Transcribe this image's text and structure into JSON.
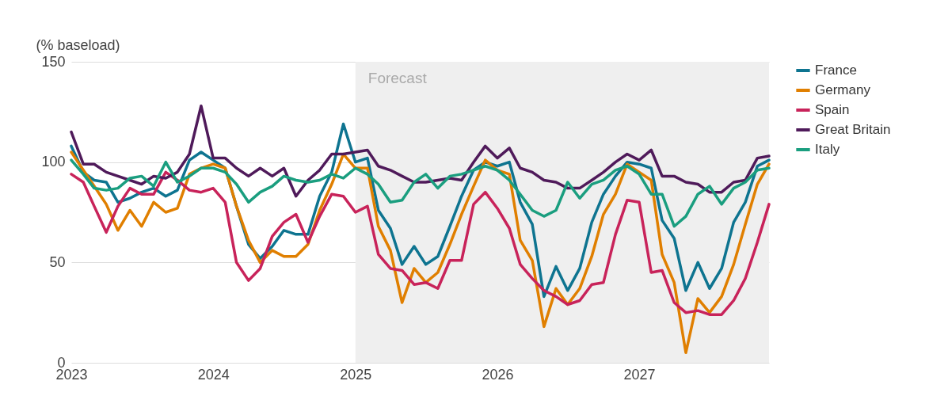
{
  "chart_data": {
    "type": "line",
    "ylabel": "(% baseload)",
    "x": [
      "2023-01",
      "2023-02",
      "2023-03",
      "2023-04",
      "2023-05",
      "2023-06",
      "2023-07",
      "2023-08",
      "2023-09",
      "2023-10",
      "2023-11",
      "2023-12",
      "2024-01",
      "2024-02",
      "2024-03",
      "2024-04",
      "2024-05",
      "2024-06",
      "2024-07",
      "2024-08",
      "2024-09",
      "2024-10",
      "2024-11",
      "2024-12",
      "2025-01",
      "2025-02",
      "2025-03",
      "2025-04",
      "2025-05",
      "2025-06",
      "2025-07",
      "2025-08",
      "2025-09",
      "2025-10",
      "2025-11",
      "2025-12",
      "2026-01",
      "2026-02",
      "2026-03",
      "2026-04",
      "2026-05",
      "2026-06",
      "2026-07",
      "2026-08",
      "2026-09",
      "2026-10",
      "2026-11",
      "2026-12",
      "2027-01",
      "2027-02",
      "2027-03",
      "2027-04",
      "2027-05",
      "2027-06",
      "2027-07",
      "2027-08",
      "2027-09",
      "2027-10",
      "2027-11",
      "2027-12"
    ],
    "series": [
      {
        "name": "France",
        "color": "#0e7490",
        "values": [
          108,
          95,
          91,
          90,
          80,
          82,
          85,
          87,
          83,
          86,
          101,
          105,
          101,
          97,
          78,
          59,
          52,
          58,
          66,
          64,
          64,
          83,
          95,
          119,
          100,
          102,
          76,
          67,
          49,
          58,
          49,
          53,
          68,
          83,
          96,
          100,
          98,
          100,
          80,
          69,
          33,
          48,
          36,
          47,
          70,
          84,
          93,
          100,
          99,
          97,
          71,
          62,
          36,
          50,
          37,
          47,
          70,
          80,
          98,
          101
        ]
      },
      {
        "name": "Germany",
        "color": "#e07f00",
        "values": [
          105,
          96,
          88,
          79,
          66,
          76,
          68,
          80,
          75,
          77,
          94,
          97,
          99,
          97,
          78,
          61,
          50,
          56,
          53,
          53,
          59,
          76,
          89,
          104,
          97,
          97,
          68,
          56,
          30,
          47,
          40,
          45,
          59,
          74,
          88,
          101,
          96,
          94,
          61,
          51,
          18,
          37,
          29,
          37,
          53,
          74,
          84,
          99,
          95,
          91,
          54,
          40,
          5,
          32,
          25,
          33,
          49,
          69,
          89,
          99
        ]
      },
      {
        "name": "Spain",
        "color": "#c8235a",
        "values": [
          94,
          90,
          78,
          65,
          78,
          87,
          84,
          84,
          95,
          91,
          86,
          85,
          87,
          80,
          50,
          41,
          47,
          63,
          70,
          74,
          60,
          73,
          84,
          83,
          75,
          78,
          54,
          47,
          46,
          39,
          40,
          37,
          51,
          51,
          79,
          85,
          77,
          67,
          49,
          42,
          36,
          33,
          29,
          31,
          39,
          40,
          64,
          81,
          80,
          45,
          46,
          30,
          25,
          26,
          24,
          24,
          31,
          42,
          60,
          79
        ]
      },
      {
        "name": "Great Britain",
        "color": "#4f1a5a",
        "values": [
          115,
          99,
          99,
          95,
          93,
          91,
          89,
          93,
          92,
          95,
          104,
          128,
          102,
          102,
          97,
          93,
          97,
          93,
          97,
          83,
          91,
          96,
          104,
          104,
          105,
          106,
          98,
          96,
          93,
          90,
          90,
          91,
          92,
          91,
          100,
          108,
          102,
          107,
          97,
          95,
          91,
          90,
          87,
          87,
          91,
          95,
          100,
          104,
          101,
          106,
          93,
          93,
          90,
          89,
          85,
          85,
          90,
          91,
          102,
          103
        ]
      },
      {
        "name": "Italy",
        "color": "#1a9e7f",
        "values": [
          101,
          94,
          87,
          86,
          87,
          92,
          93,
          88,
          100,
          90,
          93,
          97,
          97,
          95,
          89,
          80,
          85,
          88,
          93,
          91,
          90,
          91,
          94,
          92,
          97,
          94,
          89,
          80,
          81,
          90,
          94,
          87,
          93,
          94,
          96,
          98,
          96,
          91,
          84,
          76,
          73,
          76,
          90,
          82,
          89,
          91,
          96,
          98,
          94,
          84,
          84,
          68,
          73,
          84,
          88,
          79,
          87,
          90,
          96,
          97
        ]
      }
    ],
    "xlim": [
      "2023-01",
      "2027-12"
    ],
    "xticks": [
      {
        "value": "2023-01",
        "label": "2023"
      },
      {
        "value": "2024-01",
        "label": "2024"
      },
      {
        "value": "2025-01",
        "label": "2025"
      },
      {
        "value": "2026-01",
        "label": "2026"
      },
      {
        "value": "2027-01",
        "label": "2027"
      }
    ],
    "ylim": [
      0,
      150
    ],
    "yticks": [
      0,
      50,
      100,
      150
    ],
    "grid": "y",
    "legend": "right",
    "line_style": "solid",
    "marker": "none",
    "bands": [
      {
        "axis": "x",
        "from": "2025-01",
        "to": "2027-12",
        "label": "Forecast",
        "color": "#efefef"
      }
    ]
  }
}
